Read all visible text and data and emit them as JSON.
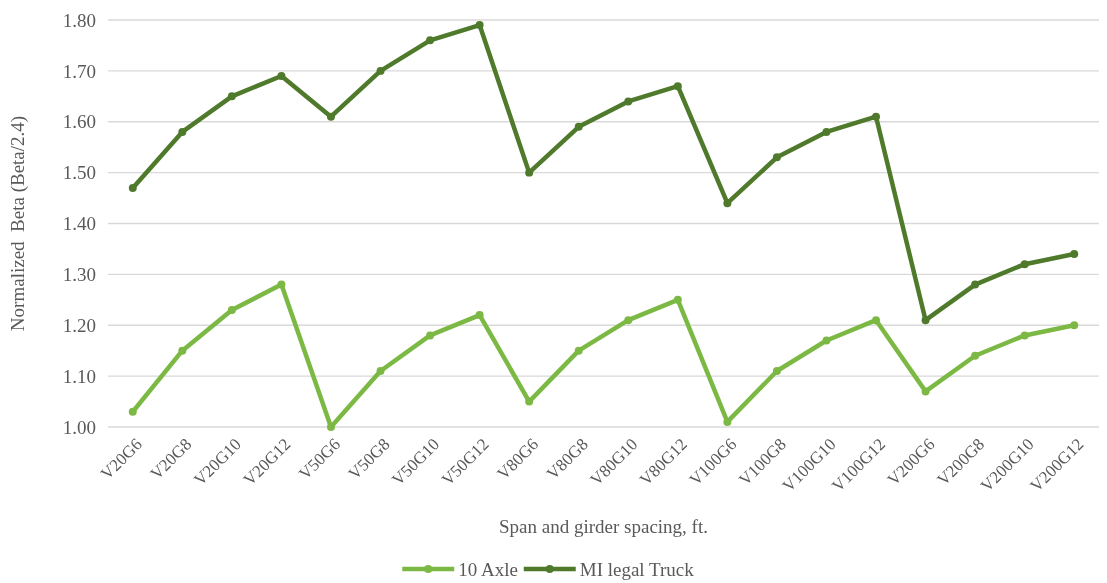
{
  "chart_data": {
    "type": "line",
    "xlabel": "Span and girder spacing, ft.",
    "ylabel": "Normalized  Beta (Beta/2.4)",
    "categories": [
      "V20G6",
      "V20G8",
      "V20G10",
      "V20G12",
      "V50G6",
      "V50G8",
      "V50G10",
      "V50G12",
      "V80G6",
      "V80G8",
      "V80G10",
      "V80G12",
      "V100G6",
      "V100G8",
      "V100G10",
      "V100G12",
      "V200G6",
      "V200G8",
      "V200G10",
      "V200G12"
    ],
    "series": [
      {
        "name": "10 Axle",
        "color": "#7cb944",
        "values": [
          1.03,
          1.15,
          1.23,
          1.28,
          1.0,
          1.11,
          1.18,
          1.22,
          1.05,
          1.15,
          1.21,
          1.25,
          1.01,
          1.11,
          1.17,
          1.21,
          1.07,
          1.14,
          1.18,
          1.2
        ]
      },
      {
        "name": "MI legal Truck",
        "color": "#4f7a2c",
        "values": [
          1.47,
          1.58,
          1.65,
          1.69,
          1.61,
          1.7,
          1.76,
          1.79,
          1.5,
          1.59,
          1.64,
          1.67,
          1.44,
          1.53,
          1.58,
          1.61,
          1.21,
          1.28,
          1.32,
          1.34
        ]
      }
    ],
    "ylim": [
      1.0,
      1.8
    ],
    "yticks": [
      {
        "value": 1.0,
        "label": "1.00"
      },
      {
        "value": 1.1,
        "label": "1.10"
      },
      {
        "value": 1.2,
        "label": "1.20"
      },
      {
        "value": 1.3,
        "label": "1.30"
      },
      {
        "value": 1.4,
        "label": "1.40"
      },
      {
        "value": 1.5,
        "label": "1.50"
      },
      {
        "value": 1.6,
        "label": "1.60"
      },
      {
        "value": 1.7,
        "label": "1.70"
      },
      {
        "value": 1.8,
        "label": "1.80"
      }
    ],
    "grid": "y",
    "legend": "bottom",
    "marker": "circle",
    "line_style": "solid"
  }
}
